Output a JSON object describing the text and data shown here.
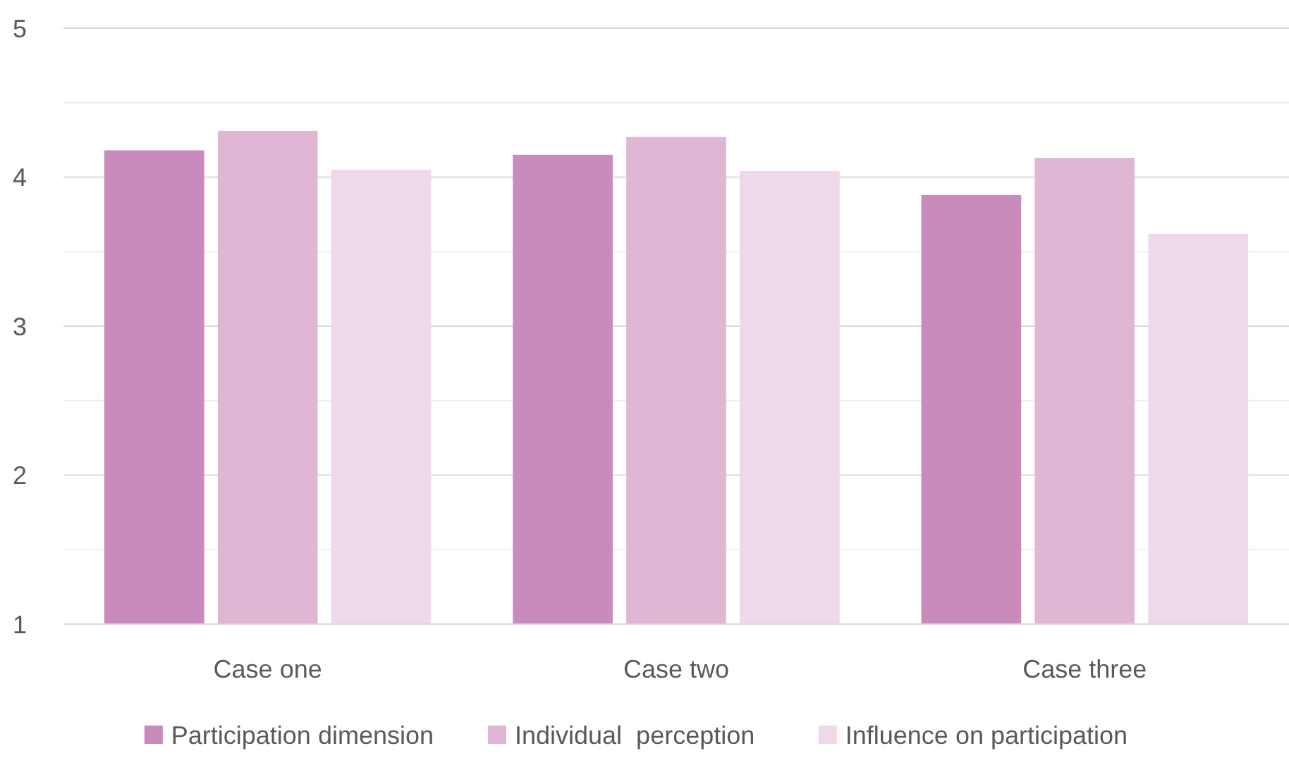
{
  "chart_data": {
    "type": "bar",
    "categories": [
      "Case one",
      "Case two",
      "Case three"
    ],
    "series": [
      {
        "name": "Participation dimension",
        "color": "#c98bbb",
        "values": [
          4.18,
          4.15,
          3.88
        ]
      },
      {
        "name": "Individual  perception",
        "color": "#dfb7d5",
        "values": [
          4.31,
          4.27,
          4.13
        ]
      },
      {
        "name": "Influence on participation",
        "color": "#efd8e9",
        "values": [
          4.05,
          4.04,
          3.62
        ]
      }
    ],
    "ylim": [
      1,
      5
    ],
    "yticks": [
      1,
      {
        "value": 1.5,
        "label": null
      },
      2,
      {
        "value": 2.5,
        "label": null
      },
      3,
      {
        "value": 3.5,
        "label": null
      },
      4,
      {
        "value": 4.5,
        "label": null
      },
      5
    ],
    "grid": true,
    "legend": "bottom"
  }
}
